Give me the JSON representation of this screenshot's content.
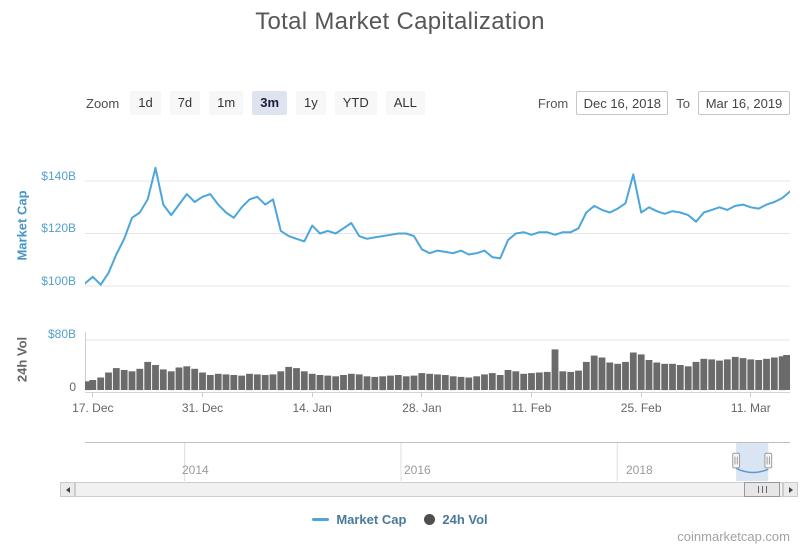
{
  "title": "Total Market Capitalization",
  "watermark": "coinmarketcap.com",
  "range_selector": {
    "zoom_label": "Zoom",
    "buttons": [
      {
        "label": "1d",
        "selected": false
      },
      {
        "label": "7d",
        "selected": false
      },
      {
        "label": "1m",
        "selected": false
      },
      {
        "label": "3m",
        "selected": true
      },
      {
        "label": "1y",
        "selected": false
      },
      {
        "label": "YTD",
        "selected": false
      },
      {
        "label": "ALL",
        "selected": false
      }
    ],
    "from_label": "From",
    "from_value": "Dec 16, 2018",
    "to_label": "To",
    "to_value": "Mar 16, 2019"
  },
  "legend": {
    "items": [
      {
        "label": "Market Cap",
        "marker": "line",
        "color": "#4DA6DB"
      },
      {
        "label": "24h Vol",
        "marker": "circle",
        "color": "#4F4F4F"
      }
    ]
  },
  "navigator": {
    "years": [
      "2014",
      "2016",
      "2018"
    ]
  },
  "colors": {
    "line": "#4DA6DB",
    "volume": "#6B6B6B",
    "grid": "#E4E4E4",
    "axis_label_blue": "#55A1CE",
    "selected_button_bg": "#DDE4EF",
    "navigator_selection": "rgba(102,153,204,0.25)"
  },
  "chart_data": [
    {
      "type": "line",
      "name": "Market Cap",
      "ylabel": "Market Cap",
      "unit": "billions USD",
      "ylim": [
        93,
        152
      ],
      "yticks": [
        {
          "value": 100,
          "label": "$100B"
        },
        {
          "value": 120,
          "label": "$120B"
        },
        {
          "value": 140,
          "label": "$140B"
        }
      ],
      "xticklabels": [
        "17. Dec",
        "31. Dec",
        "14. Jan",
        "28. Jan",
        "11. Feb",
        "25. Feb",
        "11. Mar"
      ],
      "xtick_day_indices": [
        1,
        15,
        29,
        43,
        57,
        71,
        85
      ],
      "x_dates": [
        "2018-12-16",
        "2018-12-17",
        "2018-12-18",
        "2018-12-19",
        "2018-12-20",
        "2018-12-21",
        "2018-12-22",
        "2018-12-23",
        "2018-12-24",
        "2018-12-25",
        "2018-12-26",
        "2018-12-27",
        "2018-12-28",
        "2018-12-29",
        "2018-12-30",
        "2018-12-31",
        "2019-01-01",
        "2019-01-02",
        "2019-01-03",
        "2019-01-04",
        "2019-01-05",
        "2019-01-06",
        "2019-01-07",
        "2019-01-08",
        "2019-01-09",
        "2019-01-10",
        "2019-01-11",
        "2019-01-12",
        "2019-01-13",
        "2019-01-14",
        "2019-01-15",
        "2019-01-16",
        "2019-01-17",
        "2019-01-18",
        "2019-01-19",
        "2019-01-20",
        "2019-01-21",
        "2019-01-22",
        "2019-01-23",
        "2019-01-24",
        "2019-01-25",
        "2019-01-26",
        "2019-01-27",
        "2019-01-28",
        "2019-01-29",
        "2019-01-30",
        "2019-01-31",
        "2019-02-01",
        "2019-02-02",
        "2019-02-03",
        "2019-02-04",
        "2019-02-05",
        "2019-02-06",
        "2019-02-07",
        "2019-02-08",
        "2019-02-09",
        "2019-02-10",
        "2019-02-11",
        "2019-02-12",
        "2019-02-13",
        "2019-02-14",
        "2019-02-15",
        "2019-02-16",
        "2019-02-17",
        "2019-02-18",
        "2019-02-19",
        "2019-02-20",
        "2019-02-21",
        "2019-02-22",
        "2019-02-23",
        "2019-02-24",
        "2019-02-25",
        "2019-02-26",
        "2019-02-27",
        "2019-02-28",
        "2019-03-01",
        "2019-03-02",
        "2019-03-03",
        "2019-03-04",
        "2019-03-05",
        "2019-03-06",
        "2019-03-07",
        "2019-03-08",
        "2019-03-09",
        "2019-03-10",
        "2019-03-11",
        "2019-03-12",
        "2019-03-13",
        "2019-03-14",
        "2019-03-15",
        "2019-03-16"
      ],
      "values_billions_usd": [
        101,
        103.5,
        100.5,
        105,
        112,
        118,
        126,
        128,
        133,
        145,
        131,
        127,
        131,
        135,
        132,
        134,
        135,
        131,
        128,
        126,
        130,
        133,
        134,
        131,
        133,
        121,
        119,
        118,
        117,
        123,
        120,
        121,
        120,
        122,
        124,
        119,
        118,
        118.5,
        119,
        119.5,
        120,
        120,
        119,
        114,
        112.5,
        113.5,
        113,
        112.5,
        113.5,
        112,
        112.5,
        113.5,
        111,
        110.5,
        117.5,
        120,
        120.5,
        119.5,
        120.5,
        120.5,
        119.5,
        120.5,
        120.5,
        122,
        128,
        130.5,
        129,
        128,
        129.5,
        131.5,
        142.5,
        128,
        130,
        128.5,
        127.5,
        128.5,
        128,
        127,
        124.5,
        128,
        129,
        130,
        129,
        130.5,
        131,
        130,
        129.5,
        131,
        132,
        133.5,
        136
      ]
    },
    {
      "type": "area",
      "name": "24h Vol",
      "ylabel": "24h Vol",
      "unit": "billions USD",
      "ylim": [
        0,
        96
      ],
      "yticks": [
        {
          "value": 0,
          "label": "0"
        },
        {
          "value": 80,
          "label": "$80B"
        }
      ],
      "values_billions_usd": [
        14,
        16,
        20,
        28,
        35,
        32,
        30,
        34,
        45,
        40,
        33,
        30,
        36,
        38,
        34,
        28,
        24,
        26,
        25,
        24,
        23,
        26,
        25,
        24,
        25,
        30,
        37,
        35,
        30,
        26,
        24,
        23,
        22,
        24,
        26,
        25,
        22,
        21,
        22,
        23,
        24,
        22,
        23,
        27,
        26,
        25,
        24,
        22,
        21,
        20,
        22,
        25,
        27,
        24,
        32,
        30,
        26,
        27,
        28,
        29,
        65,
        30,
        29,
        31,
        45,
        55,
        52,
        44,
        42,
        45,
        60,
        57,
        48,
        44,
        42,
        42,
        40,
        38,
        45,
        50,
        49,
        47,
        49,
        53,
        51,
        49,
        48,
        50,
        52,
        54,
        56
      ]
    }
  ]
}
